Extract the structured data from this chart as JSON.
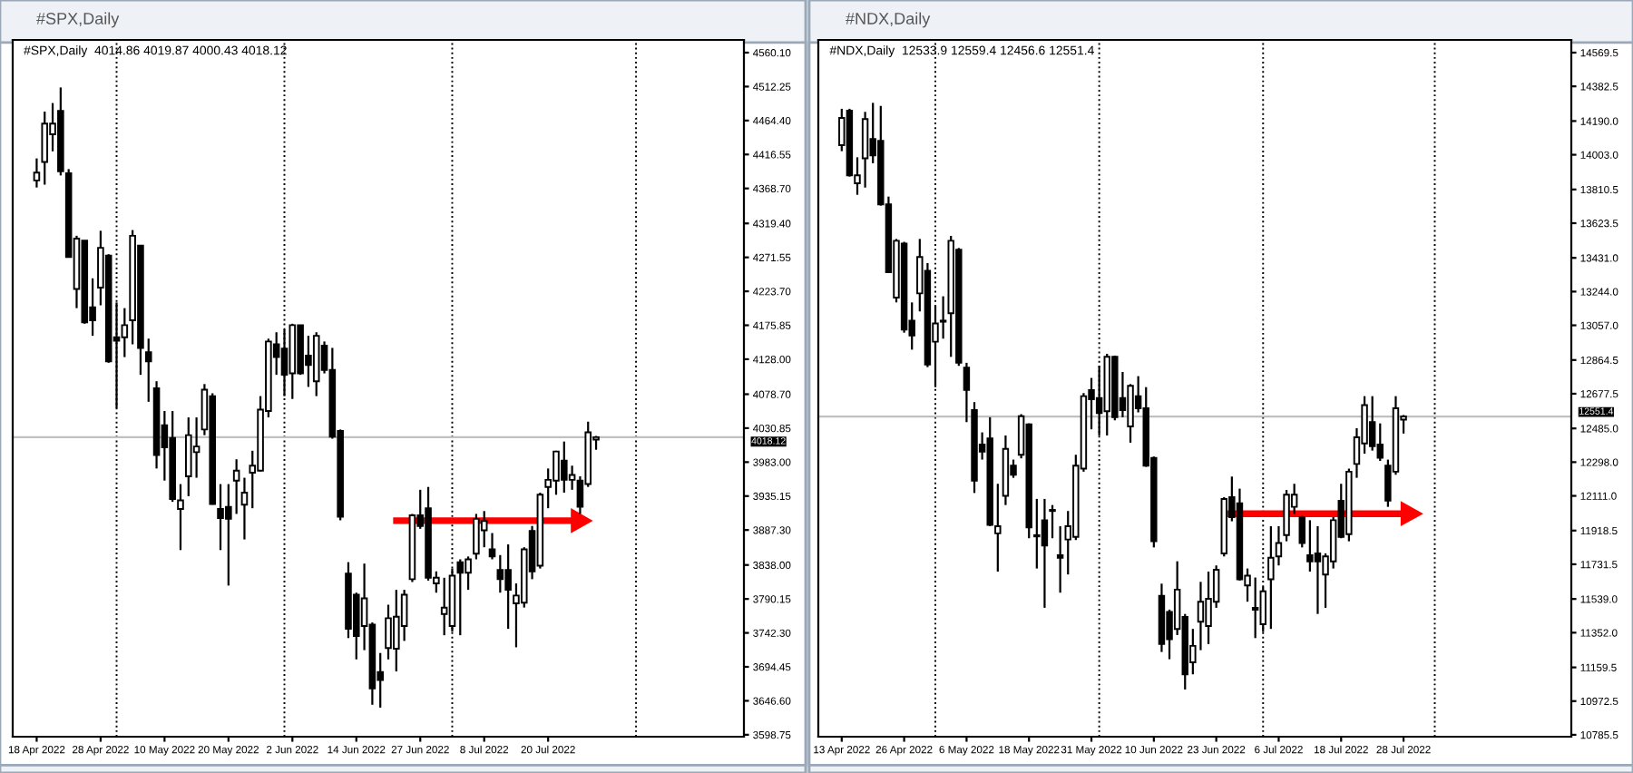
{
  "chart_data": [
    {
      "type": "candlestick",
      "title": "#SPX,Daily",
      "subtitle": "#SPX,Daily  4014.86 4019.87 4000.43 4018.12",
      "categories": [
        "18 Apr 2022",
        null,
        null,
        null,
        null,
        null,
        null,
        null,
        "28 Apr 2022",
        null,
        null,
        null,
        null,
        null,
        null,
        null,
        "10 May 2022",
        null,
        null,
        null,
        null,
        null,
        null,
        null,
        "20 May 2022",
        null,
        null,
        null,
        null,
        null,
        null,
        null,
        "2 Jun 2022",
        null,
        null,
        null,
        null,
        null,
        null,
        null,
        "14 Jun 2022",
        null,
        null,
        null,
        null,
        null,
        null,
        null,
        "27 Jun 2022",
        null,
        null,
        null,
        null,
        null,
        null,
        null,
        "8 Jul 2022",
        null,
        null,
        null,
        null,
        null,
        null,
        null,
        "20 Jul 2022",
        null,
        null,
        null,
        null,
        null,
        null,
        null,
        null,
        null,
        null,
        null,
        null,
        null,
        null,
        null,
        null,
        null,
        null,
        null,
        null,
        null,
        null,
        null,
        null
      ],
      "ohlc": [
        [
          4380,
          4411,
          4370,
          4391
        ],
        [
          4406,
          4477,
          4374,
          4460
        ],
        [
          4445,
          4489,
          4421,
          4460
        ],
        [
          4478,
          4511,
          4387,
          4393
        ],
        [
          4390,
          4396,
          4272,
          4272
        ],
        [
          4227,
          4302,
          4200,
          4298
        ],
        [
          4295,
          4295,
          4178,
          4180
        ],
        [
          4201,
          4242,
          4161,
          4183
        ],
        [
          4229,
          4309,
          4204,
          4285
        ],
        [
          4274,
          4276,
          4123,
          4125
        ],
        [
          4159,
          4208,
          4059,
          4154
        ],
        [
          4159,
          4200,
          4131,
          4176
        ],
        [
          4183,
          4310,
          4149,
          4302
        ],
        [
          4288,
          4289,
          4106,
          4144
        ],
        [
          4138,
          4157,
          4068,
          4125
        ],
        [
          4087,
          4097,
          3974,
          3993
        ],
        [
          4035,
          4055,
          3957,
          4004
        ],
        [
          4017,
          4055,
          3927,
          3931
        ],
        [
          3917,
          3952,
          3859,
          3929
        ],
        [
          3963,
          4046,
          3935,
          4021
        ],
        [
          3997,
          4046,
          3961,
          4005
        ],
        [
          4029,
          4093,
          4021,
          4085
        ],
        [
          4076,
          4080,
          3923,
          3924
        ],
        [
          3917,
          3952,
          3859,
          3904
        ],
        [
          3920,
          3952,
          3809,
          3903
        ],
        [
          3957,
          3987,
          3910,
          3971
        ],
        [
          3923,
          3961,
          3874,
          3940
        ],
        [
          3968,
          3999,
          3918,
          3978
        ],
        [
          3971,
          4076,
          3970,
          4057
        ],
        [
          4055,
          4157,
          4046,
          4153
        ],
        [
          4149,
          4166,
          4106,
          4131
        ],
        [
          4143,
          4170,
          4076,
          4106
        ],
        [
          4108,
          4178,
          4072,
          4176
        ],
        [
          4176,
          4176,
          4106,
          4108
        ],
        [
          4133,
          4161,
          4089,
          4120
        ],
        [
          4097,
          4166,
          4076,
          4161
        ],
        [
          4147,
          4153,
          4108,
          4113
        ],
        [
          4113,
          4144,
          4016,
          4019
        ],
        [
          4027,
          4029,
          3901,
          3906
        ],
        [
          3826,
          3842,
          3735,
          3748
        ],
        [
          3796,
          3799,
          3705,
          3738
        ],
        [
          3752,
          3840,
          3718,
          3791
        ],
        [
          3754,
          3757,
          3641,
          3664
        ],
        [
          3687,
          3714,
          3637,
          3676
        ],
        [
          3721,
          3782,
          3705,
          3763
        ],
        [
          3720,
          3803,
          3688,
          3765
        ],
        [
          3752,
          3803,
          3731,
          3796
        ],
        [
          3818,
          3910,
          3814,
          3908
        ],
        [
          3908,
          3944,
          3889,
          3893
        ],
        [
          3918,
          3948,
          3816,
          3820
        ],
        [
          3812,
          3829,
          3799,
          3820
        ],
        [
          3769,
          3820,
          3739,
          3778
        ],
        [
          3752,
          3833,
          3744,
          3823
        ],
        [
          3842,
          3846,
          3739,
          3827
        ],
        [
          3827,
          3850,
          3803,
          3846
        ],
        [
          3854,
          3910,
          3846,
          3903
        ],
        [
          3887,
          3914,
          3863,
          3900
        ],
        [
          3860,
          3883,
          3846,
          3850
        ],
        [
          3831,
          3852,
          3799,
          3818
        ],
        [
          3831,
          3867,
          3748,
          3803
        ],
        [
          3784,
          3812,
          3722,
          3795
        ],
        [
          3785,
          3863,
          3778,
          3860
        ],
        [
          3886,
          3893,
          3818,
          3829
        ],
        [
          3837,
          3940,
          3833,
          3937
        ],
        [
          3948,
          3974,
          3918,
          3958
        ],
        [
          3957,
          3999,
          3937,
          3998
        ],
        [
          3985,
          4012,
          3940,
          3958
        ],
        [
          3958,
          3978,
          3944,
          3965
        ],
        [
          3957,
          3963,
          3910,
          3920
        ],
        [
          3952,
          4040,
          3948,
          4025
        ],
        [
          4014.86,
          4019.87,
          4000.43,
          4018.12
        ],
        null,
        null,
        null,
        null,
        null,
        null,
        null,
        null,
        null,
        null,
        null,
        null,
        null,
        null,
        null,
        null,
        null,
        null
      ],
      "ylim": [
        3596,
        4578
      ],
      "yticks": [
        {
          "value": 4560.1,
          "label": "4560.10"
        },
        {
          "value": 4512.25,
          "label": "4512.25"
        },
        {
          "value": 4464.4,
          "label": "4464.40"
        },
        {
          "value": 4416.55,
          "label": "4416.55"
        },
        {
          "value": 4368.7,
          "label": "4368.70"
        },
        {
          "value": 4319.4,
          "label": "4319.40"
        },
        {
          "value": 4271.55,
          "label": "4271.55"
        },
        {
          "value": 4223.7,
          "label": "4223.70"
        },
        {
          "value": 4175.85,
          "label": "4175.85"
        },
        {
          "value": 4128.0,
          "label": "4128.00"
        },
        {
          "value": 4078.7,
          "label": "4078.70"
        },
        {
          "value": 4030.85,
          "label": "4030.85"
        },
        {
          "value": 3983.0,
          "label": "3983.00"
        },
        {
          "value": 3935.15,
          "label": "3935.15"
        },
        {
          "value": 3887.3,
          "label": "3887.30"
        },
        {
          "value": 3838.0,
          "label": "3838.00"
        },
        {
          "value": 3790.15,
          "label": "3790.15"
        },
        {
          "value": 3742.3,
          "label": "3742.30"
        },
        {
          "value": 3694.45,
          "label": "3694.45"
        },
        {
          "value": 3646.6,
          "label": "3646.60"
        },
        {
          "value": 3598.75,
          "label": "3598.75"
        }
      ],
      "ref_lines": [
        {
          "axis": "y",
          "value": 4018.12,
          "label": "4018.12",
          "line_style": "solid",
          "color": "#c0c0c0"
        }
      ],
      "grid": "x"
    },
    {
      "type": "candlestick",
      "title": "#NDX,Daily",
      "subtitle": "#NDX,Daily  12533.9 12559.4 12456.6 12551.4",
      "categories": [
        "13 Apr 2022",
        null,
        null,
        null,
        null,
        null,
        null,
        null,
        "26 Apr 2022",
        null,
        null,
        null,
        null,
        null,
        null,
        null,
        "6 May 2022",
        null,
        null,
        null,
        null,
        null,
        null,
        null,
        "18 May 2022",
        null,
        null,
        null,
        null,
        null,
        null,
        null,
        "31 May 2022",
        null,
        null,
        null,
        null,
        null,
        null,
        null,
        "10 Jun 2022",
        null,
        null,
        null,
        null,
        null,
        null,
        null,
        "23 Jun 2022",
        null,
        null,
        null,
        null,
        null,
        null,
        null,
        "6 Jul 2022",
        null,
        null,
        null,
        null,
        null,
        null,
        null,
        "18 Jul 2022",
        null,
        null,
        null,
        null,
        null,
        null,
        null,
        "28 Jul 2022",
        null,
        null,
        null,
        null,
        null,
        null,
        null,
        null,
        null,
        null,
        null,
        null,
        null,
        null,
        null,
        null,
        null,
        null,
        null,
        null,
        null
      ],
      "ohlc": [
        [
          14056,
          14258,
          14023,
          14207
        ],
        [
          14247,
          14258,
          13882,
          13889
        ],
        [
          13845,
          13989,
          13781,
          13889
        ],
        [
          13983,
          14241,
          13821,
          14201
        ],
        [
          14090,
          14291,
          13956,
          13999
        ],
        [
          14080,
          14274,
          13721,
          13728
        ],
        [
          13728,
          13771,
          13352,
          13352
        ],
        [
          13211,
          13536,
          13184,
          13526
        ],
        [
          13510,
          13520,
          13016,
          13033
        ],
        [
          13083,
          13184,
          12922,
          13000
        ],
        [
          13234,
          13536,
          13134,
          13436
        ],
        [
          13359,
          13402,
          12825,
          12839
        ],
        [
          12966,
          13167,
          12714,
          13067
        ],
        [
          13083,
          13218,
          12983,
          13077
        ],
        [
          13124,
          13553,
          12882,
          13526
        ],
        [
          13476,
          13486,
          12832,
          12849
        ],
        [
          12822,
          12849,
          12520,
          12698
        ],
        [
          12587,
          12631,
          12127,
          12195
        ],
        [
          12396,
          12463,
          12312,
          12356
        ],
        [
          12429,
          12547,
          11943,
          11950
        ],
        [
          11903,
          12178,
          11691,
          11943
        ],
        [
          12111,
          12446,
          12060,
          12372
        ],
        [
          12278,
          12312,
          12211,
          12228
        ],
        [
          12339,
          12564,
          12319,
          12553
        ],
        [
          12507,
          12513,
          11876,
          11936
        ],
        [
          11893,
          12094,
          11708,
          11886
        ],
        [
          11976,
          12094,
          11490,
          11836
        ],
        [
          12033,
          12060,
          11876,
          12027
        ],
        [
          11782,
          11943,
          11574,
          11768
        ],
        [
          11869,
          12027,
          11675,
          11943
        ],
        [
          11883,
          12339,
          11866,
          12278
        ],
        [
          12262,
          12681,
          12245,
          12664
        ],
        [
          12698,
          12765,
          12480,
          12647
        ],
        [
          12654,
          12832,
          12446,
          12570
        ],
        [
          12580,
          12899,
          12446,
          12882
        ],
        [
          12882,
          12889,
          12530,
          12547
        ],
        [
          12654,
          12798,
          12547,
          12587
        ],
        [
          12496,
          12731,
          12406,
          12721
        ],
        [
          12664,
          12775,
          12574,
          12597
        ],
        [
          12597,
          12714,
          12272,
          12278
        ],
        [
          12322,
          12329,
          11825,
          11859
        ],
        [
          11557,
          11624,
          11245,
          11289
        ],
        [
          11467,
          11480,
          11205,
          11316
        ],
        [
          11373,
          11748,
          11339,
          11591
        ],
        [
          11440,
          11456,
          11037,
          11121
        ],
        [
          11188,
          11373,
          11121,
          11279
        ],
        [
          11413,
          11634,
          11255,
          11524
        ],
        [
          11389,
          11691,
          11289,
          11540
        ],
        [
          11524,
          11725,
          11490,
          11701
        ],
        [
          11792,
          12104,
          11775,
          12094
        ],
        [
          12104,
          12218,
          11970,
          11993
        ],
        [
          12070,
          12151,
          11641,
          11648
        ],
        [
          11614,
          11708,
          11524,
          11668
        ],
        [
          11490,
          11658,
          11322,
          11480
        ],
        [
          11399,
          11607,
          11356,
          11581
        ],
        [
          11648,
          11943,
          11373,
          11768
        ],
        [
          11775,
          11943,
          11725,
          11849
        ],
        [
          11893,
          12144,
          11859,
          12117
        ],
        [
          12050,
          12178,
          12010,
          12117
        ],
        [
          11993,
          12000,
          11825,
          11849
        ],
        [
          11782,
          11976,
          11691,
          11748
        ],
        [
          11792,
          11943,
          11456,
          11748
        ],
        [
          11675,
          11792,
          11490,
          11775
        ],
        [
          11748,
          11993,
          11708,
          11976
        ],
        [
          12084,
          12178,
          11876,
          11883
        ],
        [
          11899,
          12262,
          11859,
          12245
        ],
        [
          12288,
          12486,
          12211,
          12436
        ],
        [
          12402,
          12664,
          12345,
          12614
        ],
        [
          12520,
          12664,
          12362,
          12386
        ],
        [
          12396,
          12513,
          12305,
          12322
        ],
        [
          12278,
          12312,
          12050,
          12084
        ],
        [
          12245,
          12664,
          12228,
          12597
        ],
        [
          12533.9,
          12559.4,
          12456.6,
          12551.4
        ],
        null,
        null,
        null,
        null,
        null,
        null,
        null,
        null,
        null,
        null,
        null,
        null,
        null,
        null,
        null,
        null,
        null,
        null,
        null,
        null,
        null
      ],
      "ylim": [
        10775,
        14640
      ],
      "yticks": [
        {
          "value": 14569.5,
          "label": "14569.5"
        },
        {
          "value": 14382.5,
          "label": "14382.5"
        },
        {
          "value": 14190.0,
          "label": "14190.0"
        },
        {
          "value": 14003.0,
          "label": "14003.0"
        },
        {
          "value": 13810.5,
          "label": "13810.5"
        },
        {
          "value": 13623.5,
          "label": "13623.5"
        },
        {
          "value": 13431.0,
          "label": "13431.0"
        },
        {
          "value": 13244.0,
          "label": "13244.0"
        },
        {
          "value": 13057.0,
          "label": "13057.0"
        },
        {
          "value": 12864.5,
          "label": "12864.5"
        },
        {
          "value": 12677.5,
          "label": "12677.5"
        },
        {
          "value": 12485.0,
          "label": "12485.0"
        },
        {
          "value": 12298.0,
          "label": "12298.0"
        },
        {
          "value": 12111.0,
          "label": "12111.0"
        },
        {
          "value": 11918.5,
          "label": "11918.5"
        },
        {
          "value": 11731.5,
          "label": "11731.5"
        },
        {
          "value": 11539.0,
          "label": "11539.0"
        },
        {
          "value": 11352.0,
          "label": "11352.0"
        },
        {
          "value": 11159.5,
          "label": "11159.5"
        },
        {
          "value": 10972.5,
          "label": "10972.5"
        },
        {
          "value": 10785.5,
          "label": "10785.5"
        }
      ],
      "ref_lines": [
        {
          "axis": "y",
          "value": 12551.4,
          "label": "12551.4",
          "line_style": "solid",
          "color": "#c0c0c0"
        }
      ],
      "grid": "x"
    }
  ]
}
